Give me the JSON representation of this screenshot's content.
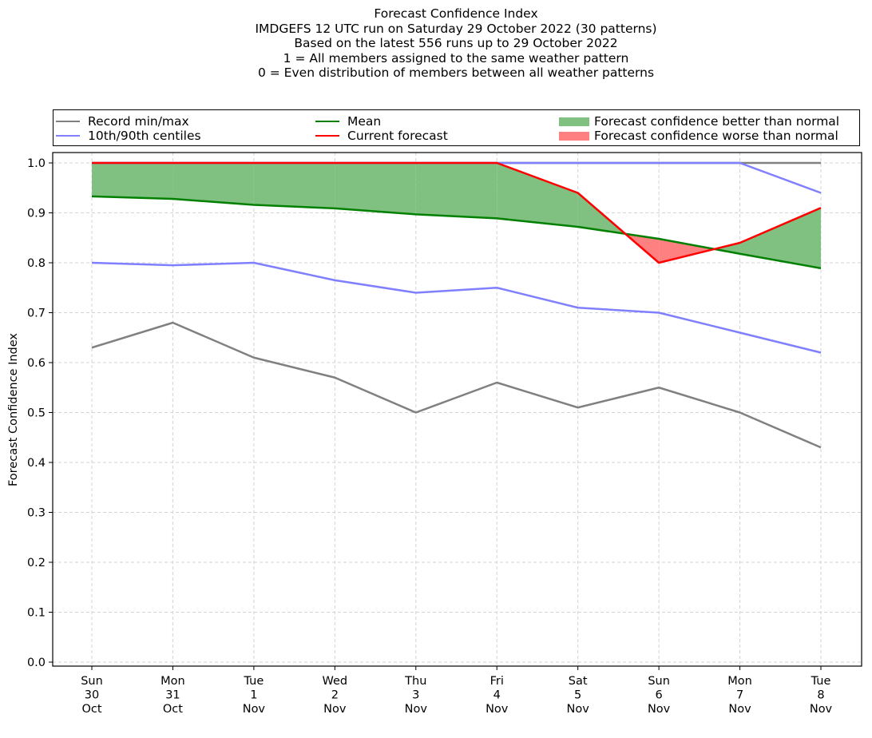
{
  "chart_data": {
    "type": "line",
    "title": "Forecast Confidence Index",
    "subtitle_lines": [
      "IMDGEFS 12 UTC run on Saturday 29 October 2022 (30 patterns)",
      "Based on the latest 556 runs up to 29 October 2022",
      "1 = All members assigned to the same weather pattern",
      "0 = Even distribution of members between all weather patterns"
    ],
    "xlabel": "",
    "ylabel": "Forecast Confidence Index",
    "ylim": [
      -0.01,
      1.01
    ],
    "yticks": [
      0.0,
      0.1,
      0.2,
      0.3,
      0.4,
      0.5,
      0.6,
      0.7,
      0.8,
      0.9,
      1.0
    ],
    "ytick_labels": [
      "0.0",
      "0.1",
      "0.2",
      "0.3",
      "0.4",
      "0.5",
      "0.6",
      "0.7",
      "0.8",
      "0.9",
      "1.0"
    ],
    "categories": [
      [
        "Sun",
        "30",
        "Oct"
      ],
      [
        "Mon",
        "31",
        "Oct"
      ],
      [
        "Tue",
        "1",
        "Nov"
      ],
      [
        "Wed",
        "2",
        "Nov"
      ],
      [
        "Thu",
        "3",
        "Nov"
      ],
      [
        "Fri",
        "4",
        "Nov"
      ],
      [
        "Sat",
        "5",
        "Nov"
      ],
      [
        "Sun",
        "6",
        "Nov"
      ],
      [
        "Mon",
        "7",
        "Nov"
      ],
      [
        "Tue",
        "8",
        "Nov"
      ]
    ],
    "grid": true,
    "legend_position": "top (above plot, 3 columns)",
    "series": [
      {
        "name": "Record max",
        "legend": "Record min/max",
        "color": "#808080",
        "values": [
          1.0,
          1.0,
          1.0,
          1.0,
          1.0,
          1.0,
          1.0,
          1.0,
          1.0,
          1.0
        ]
      },
      {
        "name": "Record min",
        "legend": "Record min/max",
        "color": "#808080",
        "values": [
          0.63,
          0.68,
          0.61,
          0.57,
          0.5,
          0.56,
          0.51,
          0.55,
          0.5,
          0.43
        ]
      },
      {
        "name": "90th centile",
        "legend": "10th/90th centiles",
        "color": "#7f7fff",
        "values": [
          1.0,
          1.0,
          1.0,
          1.0,
          1.0,
          1.0,
          1.0,
          1.0,
          1.0,
          0.94
        ]
      },
      {
        "name": "10th centile",
        "legend": "10th/90th centiles",
        "color": "#7f7fff",
        "values": [
          0.8,
          0.795,
          0.8,
          0.765,
          0.74,
          0.75,
          0.71,
          0.7,
          0.66,
          0.62
        ]
      },
      {
        "name": "Mean",
        "legend": "Mean",
        "color": "#008000",
        "values": [
          0.933,
          0.928,
          0.916,
          0.909,
          0.897,
          0.889,
          0.872,
          0.848,
          0.818,
          0.789
        ]
      },
      {
        "name": "Current forecast",
        "legend": "Current forecast",
        "color": "#ff0000",
        "values": [
          1.0,
          1.0,
          1.0,
          1.0,
          1.0,
          1.0,
          0.94,
          0.8,
          0.84,
          0.91
        ]
      }
    ],
    "fills": [
      {
        "name": "Forecast confidence better than normal",
        "color": "#80c080",
        "between": [
          "Current forecast",
          "Mean"
        ],
        "where": "current > mean"
      },
      {
        "name": "Forecast confidence worse than normal",
        "color": "#ff8080",
        "between": [
          "Current forecast",
          "Mean"
        ],
        "where": "current < mean"
      }
    ],
    "legend_entries": [
      {
        "label": "Record min/max",
        "kind": "line",
        "color": "#808080"
      },
      {
        "label": "10th/90th centiles",
        "kind": "line",
        "color": "#7f7fff"
      },
      {
        "label": "Mean",
        "kind": "line",
        "color": "#008000"
      },
      {
        "label": "Current forecast",
        "kind": "line",
        "color": "#ff0000"
      },
      {
        "label": "Forecast confidence better than normal",
        "kind": "patch",
        "color": "#80c080"
      },
      {
        "label": "Forecast confidence worse than normal",
        "kind": "patch",
        "color": "#ff8080"
      }
    ]
  }
}
